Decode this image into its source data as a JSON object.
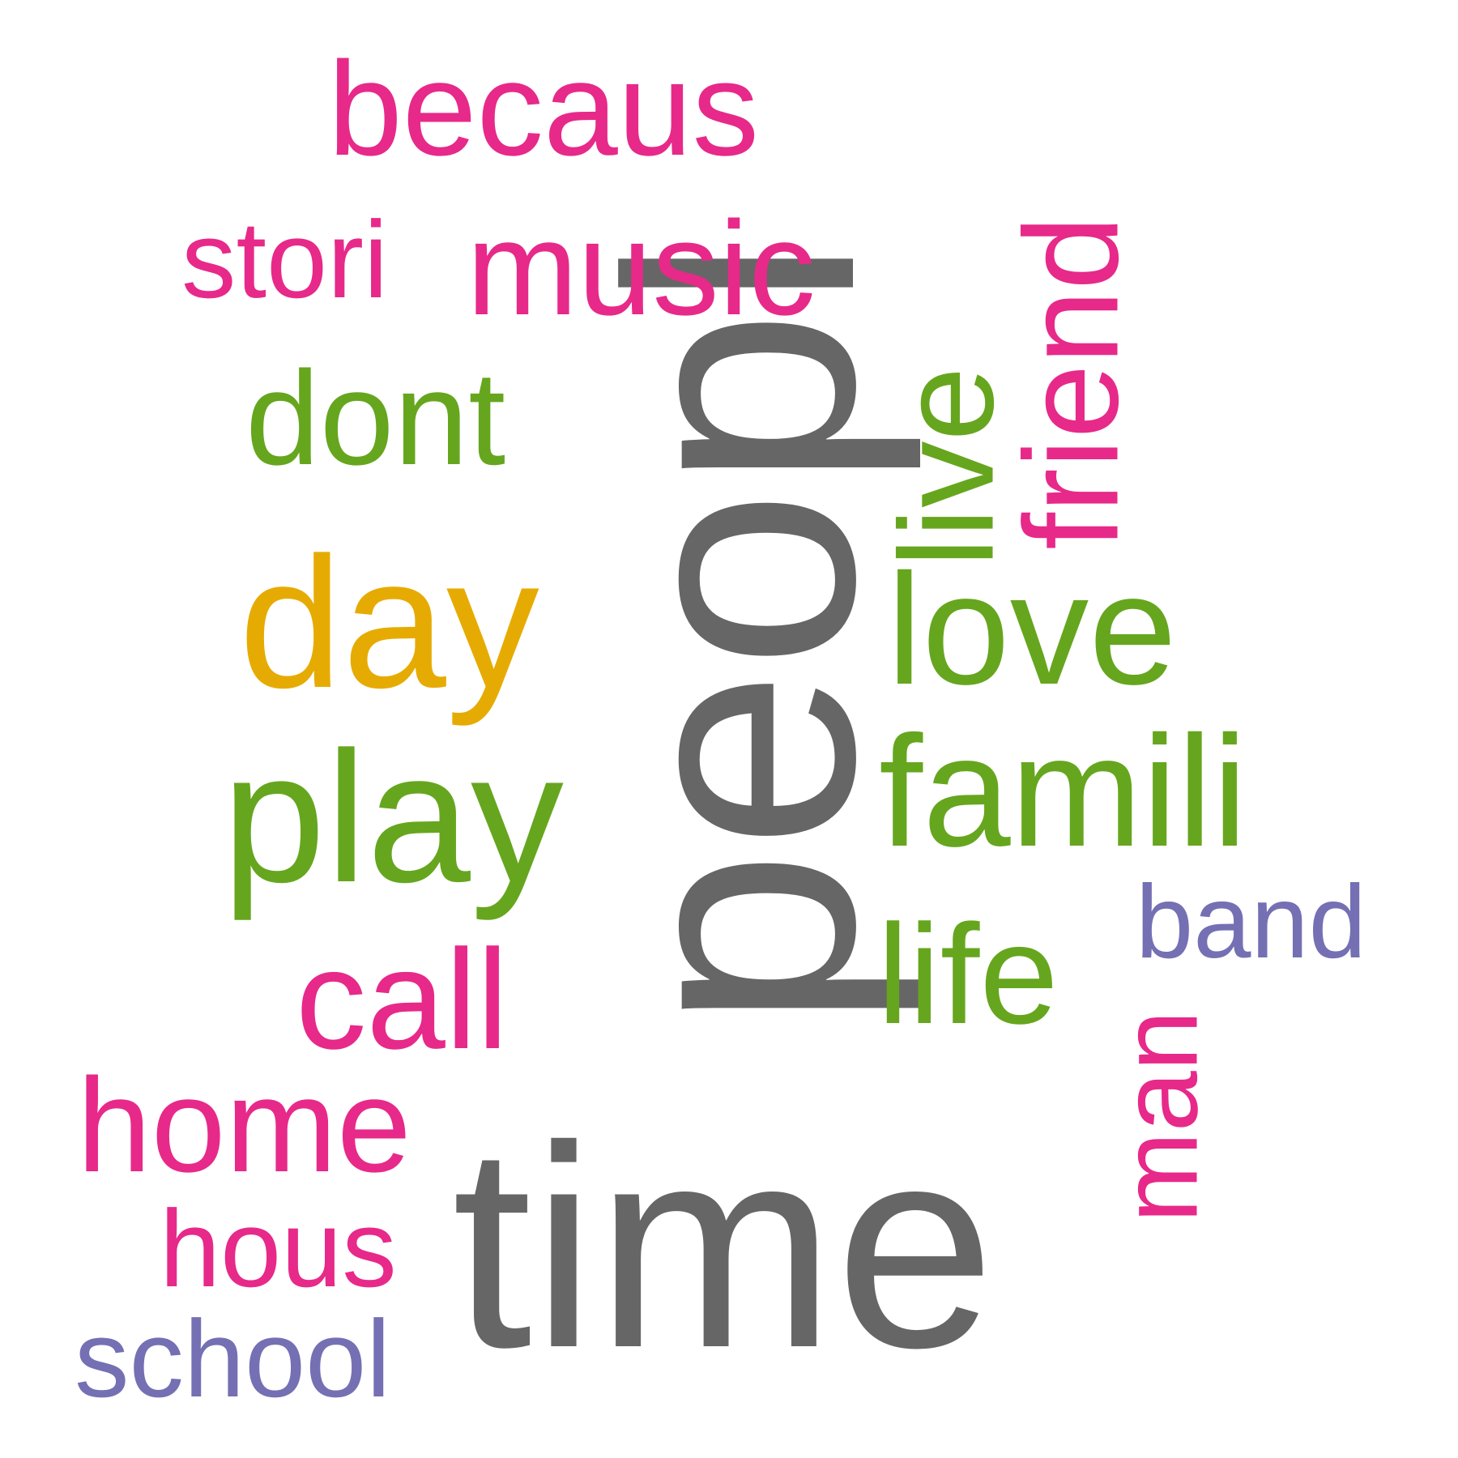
{
  "colors": {
    "gray": "#666666",
    "pink": "#e7298a",
    "green": "#66a61e",
    "gold": "#e6ab02",
    "purple": "#7570b3"
  },
  "words": {
    "peopl": {
      "text": "peopl",
      "color": "gray"
    },
    "time": {
      "text": "time",
      "color": "gray"
    },
    "day": {
      "text": "day",
      "color": "gold"
    },
    "play": {
      "text": "play",
      "color": "green"
    },
    "dont": {
      "text": "dont",
      "color": "green"
    },
    "love": {
      "text": "love",
      "color": "green"
    },
    "famili": {
      "text": "famili",
      "color": "green"
    },
    "life": {
      "text": "life",
      "color": "green"
    },
    "live": {
      "text": "live",
      "color": "green"
    },
    "becaus": {
      "text": "becaus",
      "color": "pink"
    },
    "stori": {
      "text": "stori",
      "color": "pink"
    },
    "music": {
      "text": "music",
      "color": "pink"
    },
    "friend": {
      "text": "friend",
      "color": "pink"
    },
    "call": {
      "text": "call",
      "color": "pink"
    },
    "home": {
      "text": "home",
      "color": "pink"
    },
    "hous": {
      "text": "hous",
      "color": "pink"
    },
    "man": {
      "text": "man",
      "color": "pink"
    },
    "band": {
      "text": "band",
      "color": "purple"
    },
    "school": {
      "text": "school",
      "color": "purple"
    }
  }
}
